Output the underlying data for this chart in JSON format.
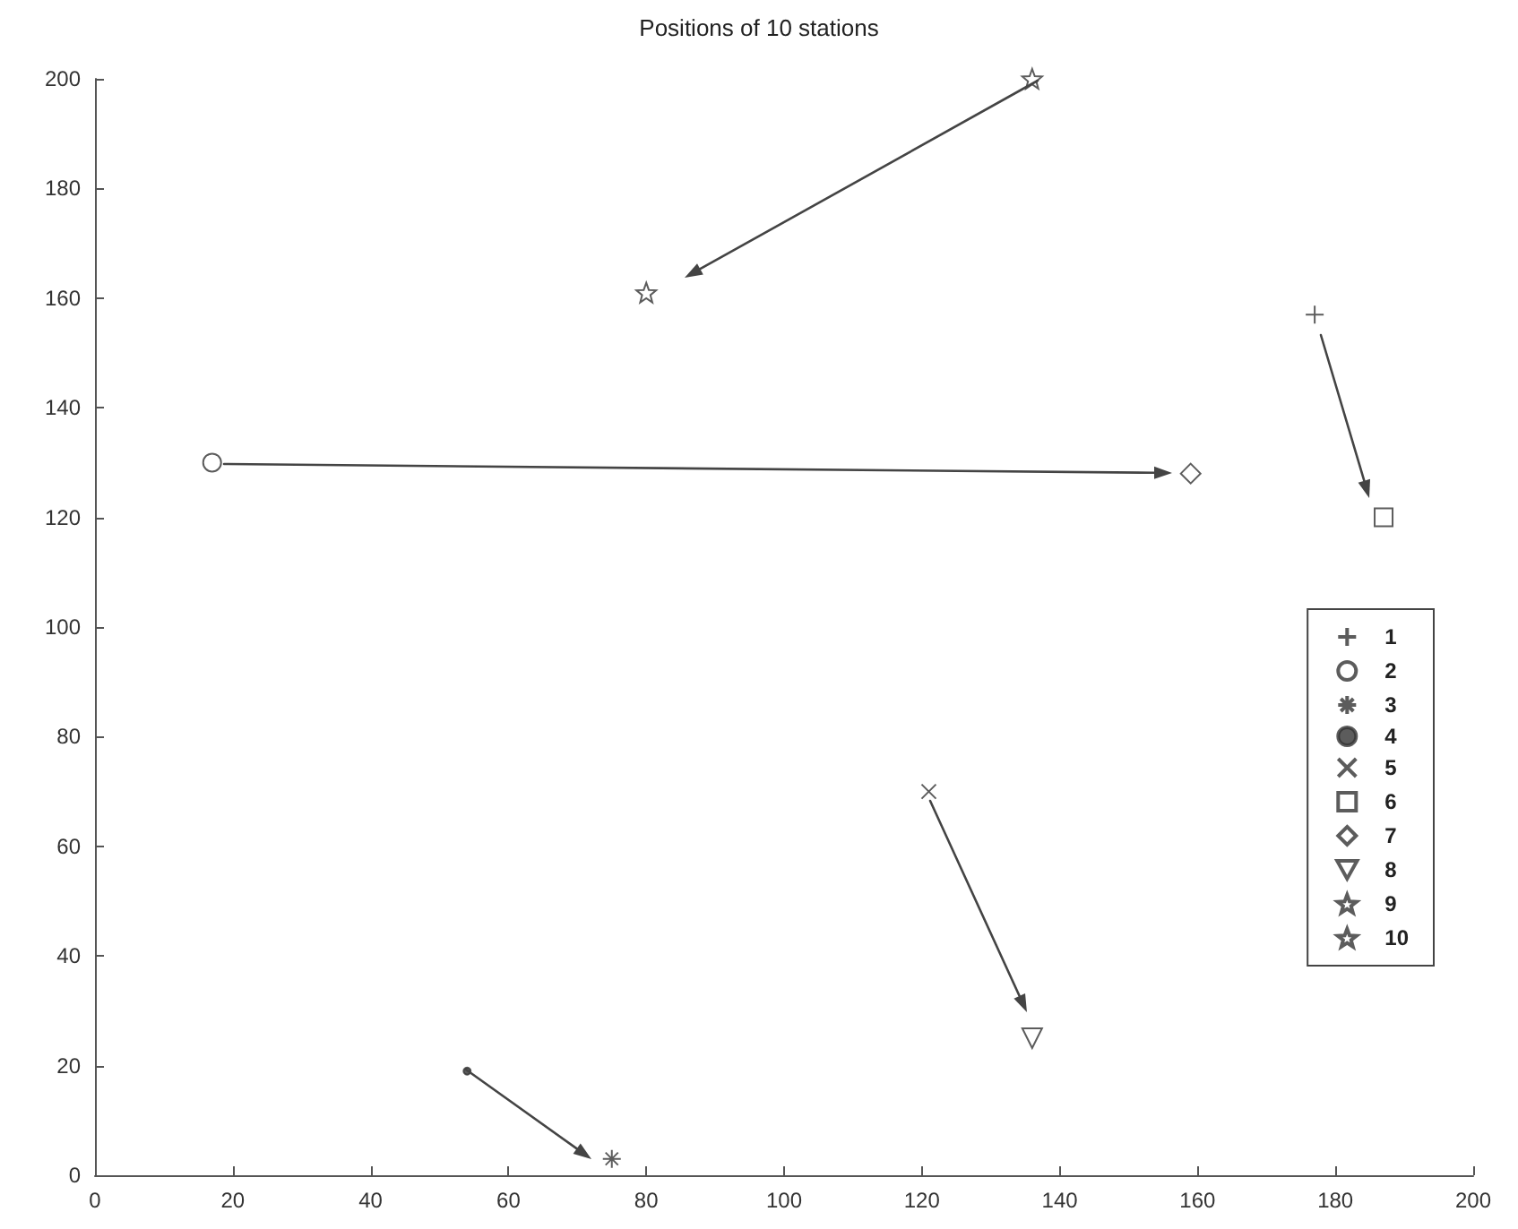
{
  "chart_data": {
    "type": "scatter",
    "title": "Positions of 10 stations",
    "xlim": [
      0,
      200
    ],
    "xticks": [
      0,
      20,
      40,
      60,
      80,
      100,
      120,
      140,
      160,
      180,
      200
    ],
    "ylim": [
      0,
      200
    ],
    "yticks": [
      0,
      20,
      40,
      60,
      80,
      100,
      120,
      140,
      160,
      180,
      200
    ],
    "grid": false,
    "legend": "right",
    "series": [
      {
        "name": "1",
        "color": "#333333",
        "marker": "plus",
        "x": [
          177
        ],
        "values": [
          157
        ]
      },
      {
        "name": "2",
        "color": "#333333",
        "marker": "circle",
        "x": [
          17
        ],
        "values": [
          130
        ]
      },
      {
        "name": "3",
        "color": "#333333",
        "marker": "cross",
        "x": [
          75
        ],
        "values": [
          3
        ]
      },
      {
        "name": "4",
        "color": "#333333",
        "marker": "point",
        "x": [
          54
        ],
        "values": [
          19
        ]
      },
      {
        "name": "5",
        "color": "#333333",
        "marker": "x",
        "x": [
          121
        ],
        "values": [
          70
        ]
      },
      {
        "name": "6",
        "color": "#333333",
        "marker": "square",
        "x": [
          187
        ],
        "values": [
          120
        ]
      },
      {
        "name": "7",
        "color": "#333333",
        "marker": "diamond",
        "x": [
          159
        ],
        "values": [
          128
        ]
      },
      {
        "name": "8",
        "color": "#333333",
        "marker": "triangle-down",
        "x": [
          136
        ],
        "values": [
          25
        ]
      },
      {
        "name": "9",
        "color": "#333333",
        "marker": "star",
        "x": [
          80
        ],
        "values": [
          161
        ]
      },
      {
        "name": "10",
        "color": "#333333",
        "marker": "star",
        "x": [
          136
        ],
        "values": [
          200
        ]
      }
    ]
  }
}
